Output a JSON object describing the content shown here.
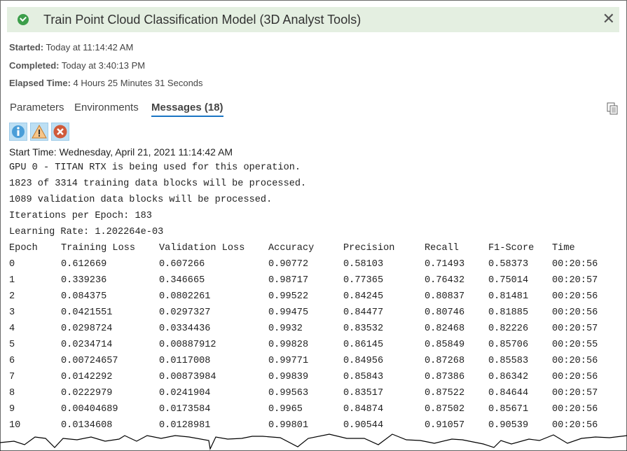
{
  "header": {
    "title": "Train Point Cloud Classification Model (3D Analyst Tools)",
    "status_icon": "success-check-icon"
  },
  "meta": {
    "started_label": "Started:",
    "started": "Today at 11:14:42 AM",
    "completed_label": "Completed:",
    "completed": "Today at 3:40:13 PM",
    "elapsed_label": "Elapsed Time:",
    "elapsed": "4 Hours 25 Minutes 31 Seconds"
  },
  "tabs": [
    {
      "label": "Parameters"
    },
    {
      "label": "Environments"
    },
    {
      "label": "Messages (18)",
      "active": true
    }
  ],
  "colors": {
    "banner": "#e4efe1",
    "accent": "#1a75c4",
    "success": "#3c9e4a"
  },
  "messages": {
    "start": "Start Time: Wednesday, April 21, 2021 11:14:42 AM",
    "lines": [
      "GPU 0 - TITAN RTX is being used for this operation.",
      "1823 of 3314 training data blocks will be processed.",
      "1089 validation data blocks will be processed.",
      "Iterations per Epoch: 183",
      "Learning Rate: 1.202264e-03"
    ],
    "columns": [
      "Epoch",
      "Training Loss",
      "Validation Loss",
      "Accuracy",
      "Precision",
      "Recall",
      "F1-Score",
      "Time"
    ],
    "rows": [
      [
        "0",
        "0.612669",
        "0.607266",
        "0.90772",
        "0.58103",
        "0.71493",
        "0.58373",
        "00:20:56"
      ],
      [
        "1",
        "0.339236",
        "0.346665",
        "0.98717",
        "0.77365",
        "0.76432",
        "0.75014",
        "00:20:57"
      ],
      [
        "2",
        "0.084375",
        "0.0802261",
        "0.99522",
        "0.84245",
        "0.80837",
        "0.81481",
        "00:20:56"
      ],
      [
        "3",
        "0.0421551",
        "0.0297327",
        "0.99475",
        "0.84477",
        "0.80746",
        "0.81885",
        "00:20:56"
      ],
      [
        "4",
        "0.0298724",
        "0.0334436",
        "0.9932",
        "0.83532",
        "0.82468",
        "0.82226",
        "00:20:57"
      ],
      [
        "5",
        "0.0234714",
        "0.00887912",
        "0.99828",
        "0.86145",
        "0.85849",
        "0.85706",
        "00:20:55"
      ],
      [
        "6",
        "0.00724657",
        "0.0117008",
        "0.99771",
        "0.84956",
        "0.87268",
        "0.85583",
        "00:20:56"
      ],
      [
        "7",
        "0.0142292",
        "0.00873984",
        "0.99839",
        "0.85843",
        "0.87386",
        "0.86342",
        "00:20:56"
      ],
      [
        "8",
        "0.0222979",
        "0.0241904",
        "0.99563",
        "0.83517",
        "0.87522",
        "0.84644",
        "00:20:57"
      ],
      [
        "9",
        "0.00404689",
        "0.0173584",
        "0.9965",
        "0.84874",
        "0.87502",
        "0.85671",
        "00:20:56"
      ],
      [
        "10",
        "0.0134608",
        "0.0128981",
        "0.99801",
        "0.90544",
        "0.91057",
        "0.90539",
        "00:20:56"
      ]
    ]
  }
}
